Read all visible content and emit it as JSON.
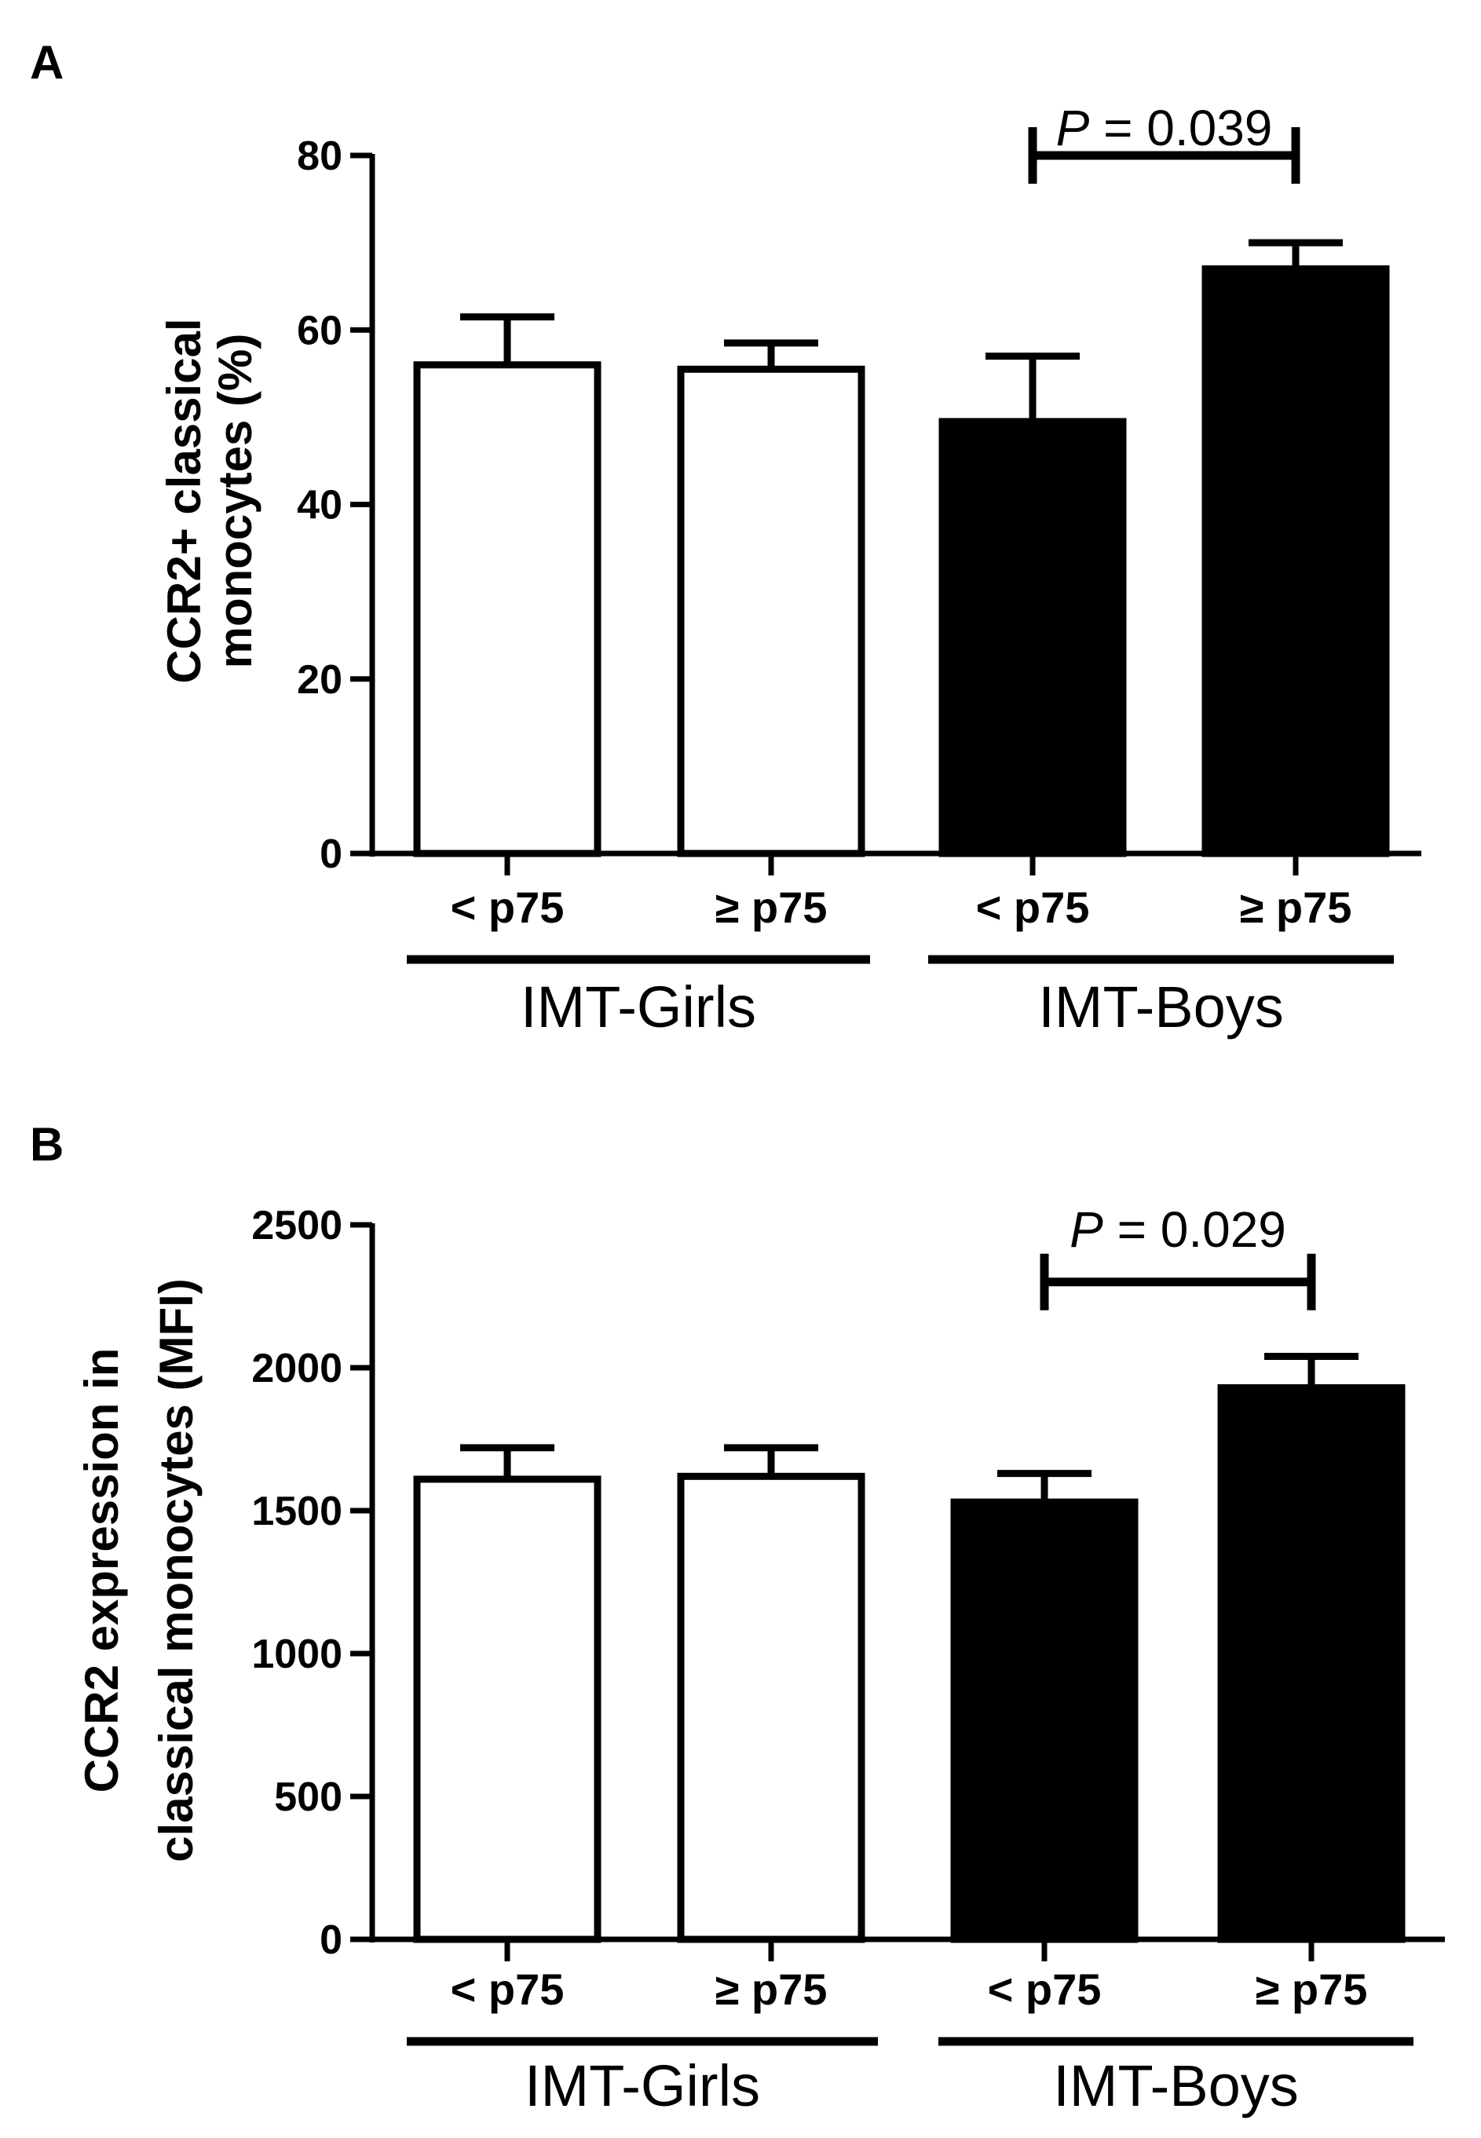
{
  "chart_data": [
    {
      "panel": "A",
      "type": "bar",
      "categories": [
        "< p75",
        "≥ p75",
        "< p75",
        "≥ p75"
      ],
      "groups": [
        {
          "label": "IMT-Girls",
          "members": [
            0,
            1
          ]
        },
        {
          "label": "IMT-Boys",
          "members": [
            2,
            3
          ]
        }
      ],
      "values": [
        56,
        55.5,
        49.5,
        67
      ],
      "errors": [
        5.5,
        3,
        7.5,
        3
      ],
      "fills": [
        "#ffffff",
        "#ffffff",
        "#000000",
        "#000000"
      ],
      "ylabel_lines": [
        "CCR2+ classical",
        "monocytes (%)"
      ],
      "ylim": [
        0,
        80
      ],
      "yticks": [
        0,
        20,
        40,
        60,
        80
      ],
      "significance": {
        "from": 2,
        "to": 3,
        "label_italic": "P",
        "label_rest": " = 0.039",
        "level": 80
      }
    },
    {
      "panel": "B",
      "type": "bar",
      "categories": [
        "< p75",
        "≥ p75",
        "< p75",
        "≥ p75"
      ],
      "groups": [
        {
          "label": "IMT-Girls",
          "members": [
            0,
            1
          ]
        },
        {
          "label": "IMT-Boys",
          "members": [
            2,
            3
          ]
        }
      ],
      "values": [
        1610,
        1620,
        1530,
        1930
      ],
      "errors": [
        110,
        100,
        100,
        110
      ],
      "fills": [
        "#ffffff",
        "#ffffff",
        "#000000",
        "#000000"
      ],
      "ylabel_lines": [
        "CCR2 expression in",
        "classical monocytes (MFI)"
      ],
      "ylim": [
        0,
        2500
      ],
      "yticks": [
        0,
        500,
        1000,
        1500,
        2000,
        2500
      ],
      "significance": {
        "from": 2,
        "to": 3,
        "label_italic": "P",
        "label_rest": " = 0.029",
        "level": 2300
      }
    }
  ]
}
